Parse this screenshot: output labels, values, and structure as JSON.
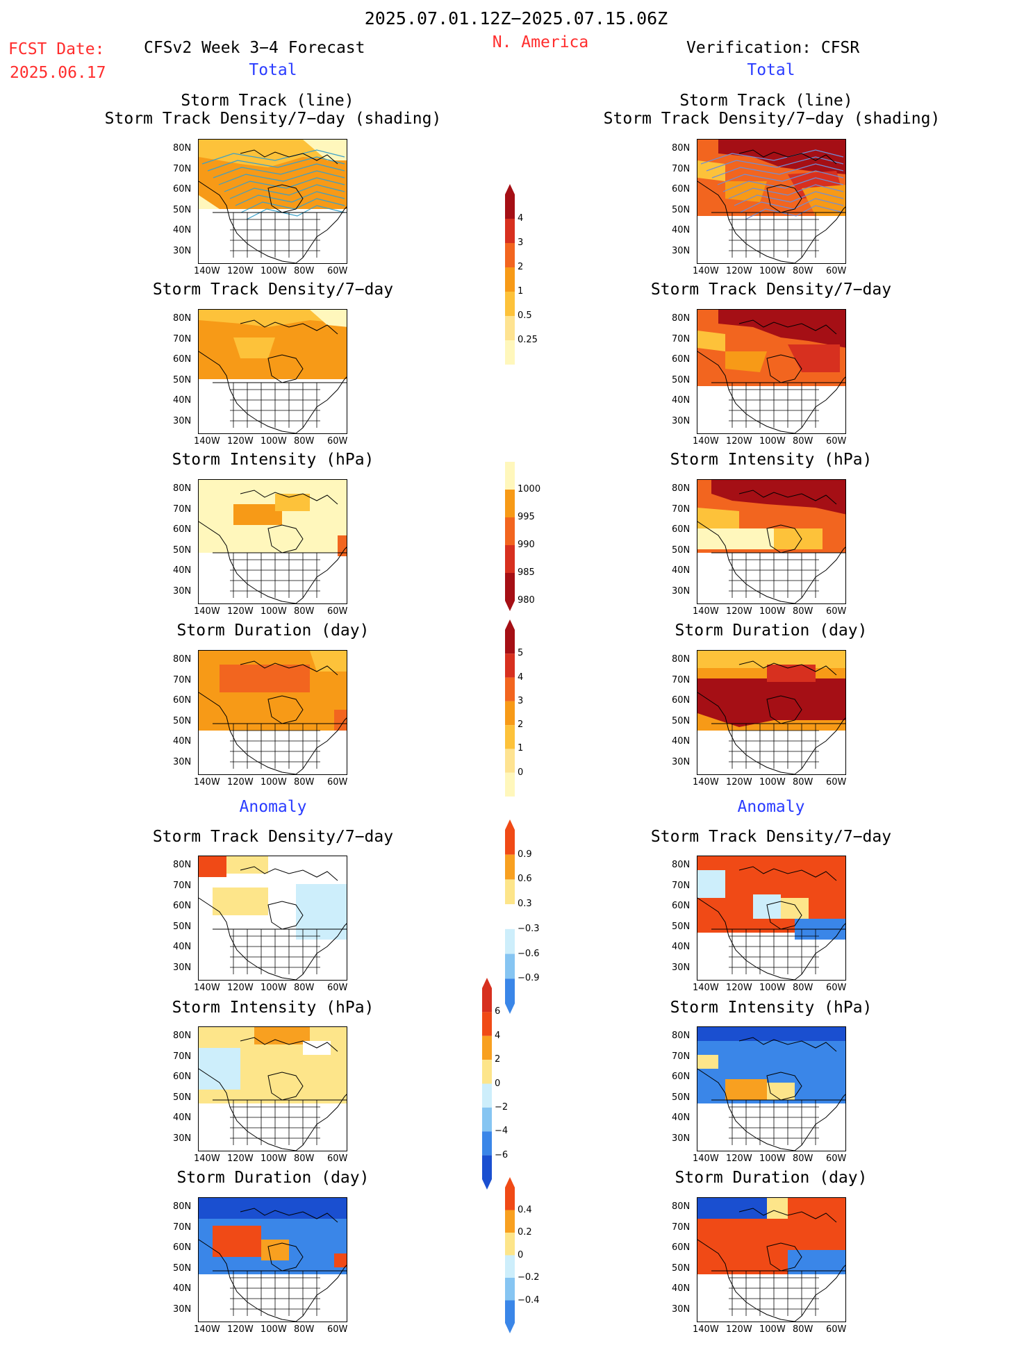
{
  "header": {
    "period": "2025.07.01.12Z−2025.07.15.06Z",
    "region": "N. America",
    "fcst_label": "FCST Date:",
    "fcst_date": "2025.06.17",
    "left_title": "CFSv2 Week 3−4 Forecast",
    "right_title": "Verification: CFSR",
    "total_left": "Total",
    "total_right": "Total",
    "anomaly_left": "Anomaly",
    "anomaly_right": "Anomaly"
  },
  "panel_titles": {
    "track_line": "Storm Track (line)",
    "track_density_shading": "Storm Track Density/7−day (shading)",
    "track_density": "Storm Track Density/7−day",
    "intensity": "Storm Intensity (hPa)",
    "duration": "Storm Duration (day)"
  },
  "axes": {
    "lat_ticks": [
      "80N",
      "70N",
      "60N",
      "50N",
      "40N",
      "30N"
    ],
    "lon_ticks": [
      "140W",
      "120W",
      "100W",
      "80W",
      "60W"
    ]
  },
  "colorbars": {
    "density": [
      "4",
      "3",
      "2",
      "1",
      "0.5",
      "0.25"
    ],
    "intensity": [
      "1000",
      "995",
      "990",
      "985",
      "980"
    ],
    "duration": [
      "5",
      "4",
      "3",
      "2",
      "1",
      "0"
    ],
    "density_anom": [
      "0.9",
      "0.6",
      "0.3",
      "−0.3",
      "−0.6",
      "−0.9"
    ],
    "intensity_anom": [
      "6",
      "4",
      "2",
      "0",
      "−2",
      "−4",
      "−6"
    ],
    "duration_anom": [
      "0.4",
      "0.2",
      "0",
      "−0.2",
      "−0.4"
    ]
  },
  "colors": {
    "pale_yellow": "#fff7bc",
    "yellow": "#fee391",
    "light_orange": "#fdc23a",
    "orange": "#f79a17",
    "dark_orange": "#f2651f",
    "red": "#d7301f",
    "dark_red": "#a50f15",
    "light_blue": "#cdeefb",
    "mid_blue": "#86c5f2",
    "blue": "#3a86e8",
    "dark_blue": "#1a4fd0",
    "track_line": "#3aa0c8",
    "anom_red": "#f04a16",
    "anom_orange": "#f8a020",
    "anom_yellow": "#fde58a"
  }
}
